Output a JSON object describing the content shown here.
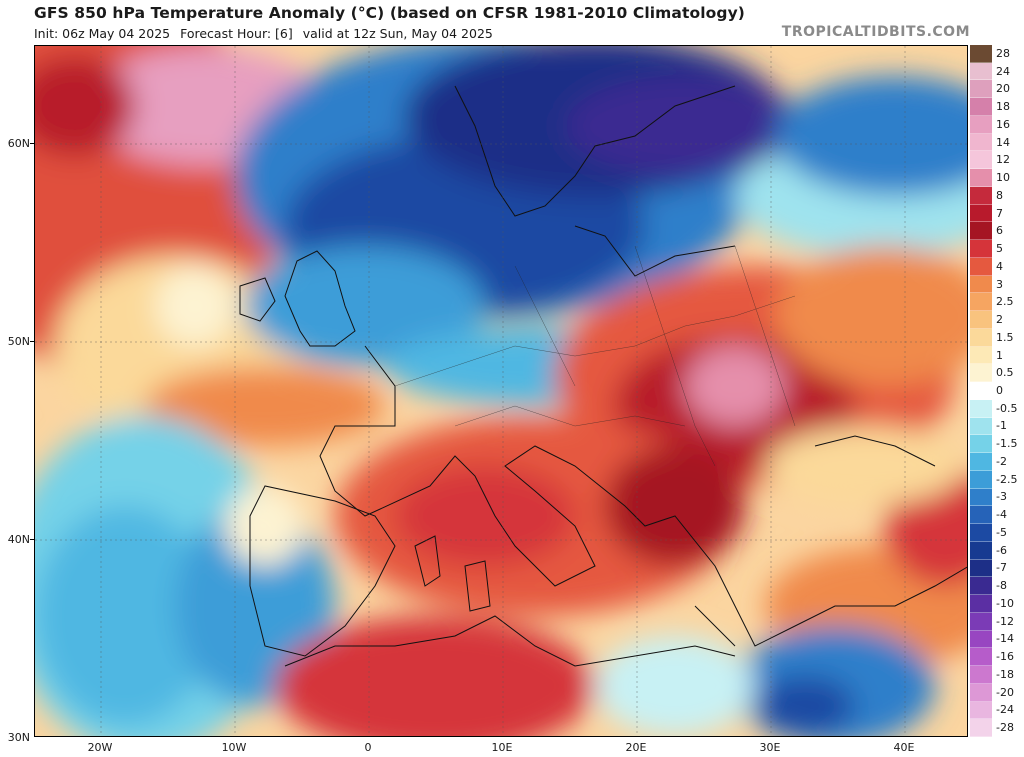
{
  "header": {
    "title": "GFS 850 hPa Temperature Anomaly (°C) (based on CFSR 1981-2010 Climatology)",
    "init": "Init: 06z May 04 2025",
    "forecast_hour": "Forecast Hour: [6]",
    "valid": "valid at 12z Sun, May 04 2025",
    "brand": "TROPICALTIDBITS.COM"
  },
  "axes": {
    "y_ticks": [
      "60N",
      "50N",
      "40N",
      "30N"
    ],
    "x_ticks": [
      "20W",
      "10W",
      "0",
      "10E",
      "20E",
      "30E",
      "40E"
    ]
  },
  "colorbar": {
    "labels": [
      "28",
      "24",
      "20",
      "18",
      "16",
      "14",
      "12",
      "10",
      "8",
      "7",
      "6",
      "5",
      "4",
      "3",
      "2.5",
      "2",
      "1.5",
      "1",
      "0.5",
      "0",
      "-0.5",
      "-1",
      "-1.5",
      "-2",
      "-2.5",
      "-3",
      "-4",
      "-5",
      "-6",
      "-7",
      "-8",
      "-10",
      "-12",
      "-14",
      "-16",
      "-18",
      "-20",
      "-24",
      "-28"
    ],
    "colors": [
      "#6b4a32",
      "#e8bfd0",
      "#dea0bd",
      "#d580aa",
      "#e79fc0",
      "#f0b6cf",
      "#f5c6db",
      "#e58fab",
      "#c52a3c",
      "#b81a2c",
      "#a51523",
      "#d5343a",
      "#e5593f",
      "#f08a4c",
      "#f6a561",
      "#f9c37e",
      "#fbd99a",
      "#fde9b6",
      "#fdf3d2",
      "#ffffff",
      "#c8f1f4",
      "#9fe3ee",
      "#75d2e8",
      "#4fb7e2",
      "#3c9dd8",
      "#2f7fca",
      "#2663b8",
      "#1c4aa3",
      "#173a91",
      "#1d2f87",
      "#3a2a91",
      "#5b2fa3",
      "#7b3bb6",
      "#9846c1",
      "#b65cca",
      "#cc78cf",
      "#dd98d6",
      "#e9b6e0",
      "#f3d3ea"
    ]
  },
  "map": {
    "region": "Europe, North Africa, Middle East",
    "lat_range": [
      30,
      65
    ],
    "lon_range": [
      -25,
      45
    ]
  }
}
